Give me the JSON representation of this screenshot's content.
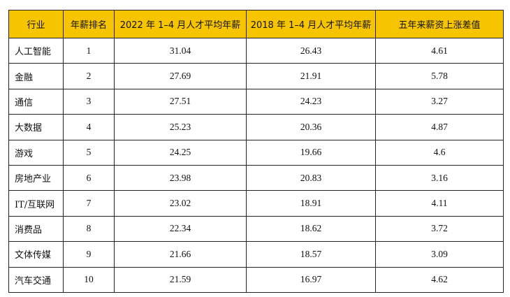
{
  "table": {
    "header": [
      "行业",
      "年薪排名",
      "2022 年 1–4 月人才平均年薪",
      "2018 年 1–4 月人才平均年薪",
      "五年来薪资上涨差值"
    ],
    "rows": [
      [
        "人工智能",
        1,
        31.04,
        26.43,
        4.61
      ],
      [
        "金融",
        2,
        27.69,
        21.91,
        5.78
      ],
      [
        "通信",
        3,
        27.51,
        24.23,
        3.27
      ],
      [
        "大数据",
        4,
        25.23,
        20.36,
        4.87
      ],
      [
        "游戏",
        5,
        24.25,
        19.66,
        4.6
      ],
      [
        "房地产业",
        6,
        23.98,
        20.83,
        3.16
      ],
      [
        "IT/互联网",
        7,
        23.02,
        18.91,
        4.11
      ],
      [
        "消费品",
        8,
        22.34,
        18.62,
        3.72
      ],
      [
        "文体传媒",
        9,
        21.66,
        18.57,
        3.09
      ],
      [
        "汽车交通",
        10,
        21.59,
        16.97,
        4.62
      ]
    ]
  }
}
